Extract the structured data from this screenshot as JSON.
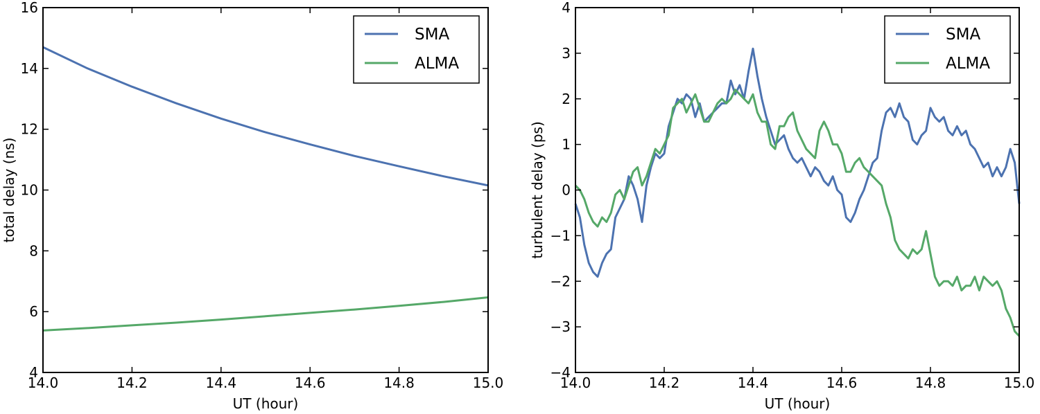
{
  "chart_data": [
    {
      "type": "line",
      "xlabel": "UT (hour)",
      "ylabel": "total delay (ns)",
      "xlim": [
        14.0,
        15.0
      ],
      "ylim": [
        4,
        16
      ],
      "xticks": [
        "14.0",
        "14.2",
        "14.4",
        "14.6",
        "14.8",
        "15.0"
      ],
      "yticks": [
        "4",
        "6",
        "8",
        "10",
        "12",
        "14",
        "16"
      ],
      "grid": false,
      "legend": "top-right",
      "series": [
        {
          "name": "SMA",
          "color": "#4c72b0",
          "x": [
            14.0,
            14.1,
            14.2,
            14.3,
            14.4,
            14.5,
            14.6,
            14.7,
            14.8,
            14.9,
            15.0
          ],
          "y": [
            14.7,
            14.0,
            13.4,
            12.85,
            12.35,
            11.9,
            11.5,
            11.12,
            10.78,
            10.45,
            10.15
          ]
        },
        {
          "name": "ALMA",
          "color": "#55a868",
          "x": [
            14.0,
            14.1,
            14.2,
            14.3,
            14.4,
            14.5,
            14.6,
            14.7,
            14.8,
            14.9,
            15.0
          ],
          "y": [
            5.38,
            5.46,
            5.55,
            5.64,
            5.74,
            5.85,
            5.96,
            6.07,
            6.19,
            6.32,
            6.47
          ]
        }
      ]
    },
    {
      "type": "line",
      "xlabel": "UT (hour)",
      "ylabel": "turbulent delay (ps)",
      "xlim": [
        14.0,
        15.0
      ],
      "ylim": [
        -4,
        4
      ],
      "xticks": [
        "14.0",
        "14.2",
        "14.4",
        "14.6",
        "14.8",
        "15.0"
      ],
      "yticks": [
        "−4",
        "−3",
        "−2",
        "−1",
        "0",
        "1",
        "2",
        "3",
        "4"
      ],
      "grid": false,
      "legend": "top-right",
      "series": [
        {
          "name": "SMA",
          "color": "#4c72b0",
          "x": [
            14.0,
            14.01,
            14.02,
            14.03,
            14.04,
            14.05,
            14.06,
            14.07,
            14.08,
            14.09,
            14.1,
            14.11,
            14.12,
            14.13,
            14.14,
            14.15,
            14.16,
            14.17,
            14.18,
            14.19,
            14.2,
            14.21,
            14.22,
            14.23,
            14.24,
            14.25,
            14.26,
            14.27,
            14.28,
            14.29,
            14.3,
            14.31,
            14.32,
            14.33,
            14.34,
            14.35,
            14.36,
            14.37,
            14.38,
            14.39,
            14.4,
            14.41,
            14.42,
            14.43,
            14.44,
            14.45,
            14.46,
            14.47,
            14.48,
            14.49,
            14.5,
            14.51,
            14.52,
            14.53,
            14.54,
            14.55,
            14.56,
            14.57,
            14.58,
            14.59,
            14.6,
            14.61,
            14.62,
            14.63,
            14.64,
            14.65,
            14.66,
            14.67,
            14.68,
            14.69,
            14.7,
            14.71,
            14.72,
            14.73,
            14.74,
            14.75,
            14.76,
            14.77,
            14.78,
            14.79,
            14.8,
            14.81,
            14.82,
            14.83,
            14.84,
            14.85,
            14.86,
            14.87,
            14.88,
            14.89,
            14.9,
            14.91,
            14.92,
            14.93,
            14.94,
            14.95,
            14.96,
            14.97,
            14.98,
            14.99,
            15.0
          ],
          "y": [
            -0.3,
            -0.6,
            -1.2,
            -1.6,
            -1.8,
            -1.9,
            -1.6,
            -1.4,
            -1.3,
            -0.6,
            -0.4,
            -0.2,
            0.3,
            0.1,
            -0.2,
            -0.7,
            0.1,
            0.5,
            0.8,
            0.7,
            0.8,
            1.4,
            1.7,
            2.0,
            1.9,
            2.1,
            2.0,
            1.6,
            1.9,
            1.5,
            1.6,
            1.7,
            1.8,
            1.9,
            1.9,
            2.4,
            2.1,
            2.3,
            2.0,
            2.6,
            3.1,
            2.5,
            2.0,
            1.6,
            1.3,
            1.0,
            1.1,
            1.2,
            0.9,
            0.7,
            0.6,
            0.7,
            0.5,
            0.3,
            0.5,
            0.4,
            0.2,
            0.1,
            0.3,
            0.0,
            -0.1,
            -0.6,
            -0.7,
            -0.5,
            -0.2,
            0.0,
            0.3,
            0.6,
            0.7,
            1.3,
            1.7,
            1.8,
            1.6,
            1.9,
            1.6,
            1.5,
            1.1,
            1.0,
            1.2,
            1.3,
            1.8,
            1.6,
            1.5,
            1.6,
            1.3,
            1.2,
            1.4,
            1.2,
            1.3,
            1.0,
            0.9,
            0.7,
            0.5,
            0.6,
            0.3,
            0.5,
            0.3,
            0.5,
            0.9,
            0.6,
            -0.3
          ]
        },
        {
          "name": "ALMA",
          "color": "#55a868",
          "x": [
            14.0,
            14.01,
            14.02,
            14.03,
            14.04,
            14.05,
            14.06,
            14.07,
            14.08,
            14.09,
            14.1,
            14.11,
            14.12,
            14.13,
            14.14,
            14.15,
            14.16,
            14.17,
            14.18,
            14.19,
            14.2,
            14.21,
            14.22,
            14.23,
            14.24,
            14.25,
            14.26,
            14.27,
            14.28,
            14.29,
            14.3,
            14.31,
            14.32,
            14.33,
            14.34,
            14.35,
            14.36,
            14.37,
            14.38,
            14.39,
            14.4,
            14.41,
            14.42,
            14.43,
            14.44,
            14.45,
            14.46,
            14.47,
            14.48,
            14.49,
            14.5,
            14.51,
            14.52,
            14.53,
            14.54,
            14.55,
            14.56,
            14.57,
            14.58,
            14.59,
            14.6,
            14.61,
            14.62,
            14.63,
            14.64,
            14.65,
            14.66,
            14.67,
            14.68,
            14.69,
            14.7,
            14.71,
            14.72,
            14.73,
            14.74,
            14.75,
            14.76,
            14.77,
            14.78,
            14.79,
            14.8,
            14.81,
            14.82,
            14.83,
            14.84,
            14.85,
            14.86,
            14.87,
            14.88,
            14.89,
            14.9,
            14.91,
            14.92,
            14.93,
            14.94,
            14.95,
            14.96,
            14.97,
            14.98,
            14.99,
            15.0
          ],
          "y": [
            0.1,
            0.0,
            -0.2,
            -0.5,
            -0.7,
            -0.8,
            -0.6,
            -0.7,
            -0.5,
            -0.1,
            0.0,
            -0.2,
            0.1,
            0.4,
            0.5,
            0.1,
            0.3,
            0.6,
            0.9,
            0.8,
            1.0,
            1.2,
            1.8,
            1.9,
            2.0,
            1.7,
            1.9,
            2.1,
            1.8,
            1.5,
            1.5,
            1.7,
            1.9,
            2.0,
            1.9,
            2.0,
            2.2,
            2.1,
            2.0,
            1.9,
            2.1,
            1.7,
            1.5,
            1.5,
            1.0,
            0.9,
            1.4,
            1.4,
            1.6,
            1.7,
            1.3,
            1.1,
            0.9,
            0.8,
            0.7,
            1.3,
            1.5,
            1.3,
            1.0,
            1.0,
            0.8,
            0.4,
            0.4,
            0.6,
            0.7,
            0.5,
            0.4,
            0.3,
            0.2,
            0.1,
            -0.3,
            -0.6,
            -1.1,
            -1.3,
            -1.4,
            -1.5,
            -1.3,
            -1.4,
            -1.3,
            -0.9,
            -1.4,
            -1.9,
            -2.1,
            -2.0,
            -2.0,
            -2.1,
            -1.9,
            -2.2,
            -2.1,
            -2.1,
            -1.9,
            -2.2,
            -1.9,
            -2.0,
            -2.1,
            -2.0,
            -2.2,
            -2.6,
            -2.8,
            -3.1,
            -3.2
          ]
        }
      ]
    }
  ]
}
